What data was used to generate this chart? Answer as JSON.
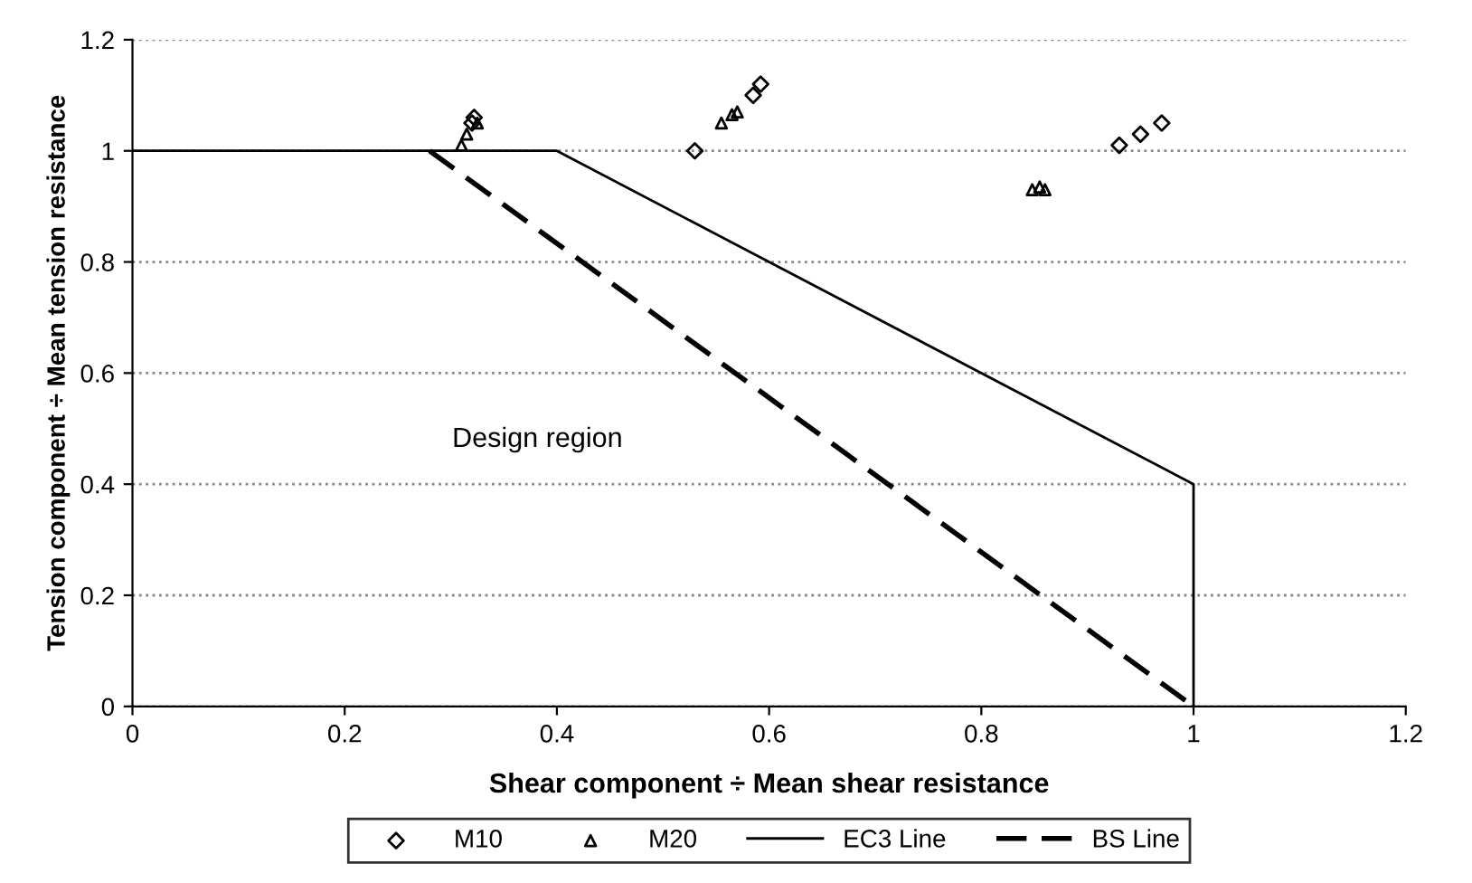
{
  "chart_data": {
    "type": "scatter",
    "xlabel": "Shear component ÷ Mean shear resistance",
    "ylabel": "Tension component ÷ Mean tension resistance",
    "xlim": [
      0,
      1.2
    ],
    "ylim": [
      0,
      1.2
    ],
    "xticks": [
      0,
      0.2,
      0.4,
      0.6,
      0.8,
      1,
      1.2
    ],
    "yticks": [
      0,
      0.2,
      0.4,
      0.6,
      0.8,
      1,
      1.2
    ],
    "grid": "y",
    "legend": "bottom",
    "annotations": [
      "Design region"
    ],
    "series": [
      {
        "name": "M10",
        "marker": "diamond",
        "color": "#000000",
        "x": [
          0.32,
          0.322,
          0.53,
          0.585,
          0.592,
          0.93,
          0.95,
          0.97
        ],
        "values": [
          1.05,
          1.06,
          1.0,
          1.1,
          1.12,
          1.01,
          1.03,
          1.05
        ]
      },
      {
        "name": "M20",
        "marker": "triangle",
        "color": "#000000",
        "x": [
          0.31,
          0.315,
          0.325,
          0.555,
          0.565,
          0.57,
          0.848,
          0.855,
          0.86
        ],
        "values": [
          1.01,
          1.03,
          1.05,
          1.05,
          1.065,
          1.07,
          0.93,
          0.935,
          0.93
        ]
      },
      {
        "name": "EC3 Line",
        "type": "line",
        "marker": "none",
        "line_style": "solid",
        "color": "#000000",
        "x": [
          0,
          0.4,
          1,
          1
        ],
        "values": [
          1,
          1,
          0.4,
          0
        ]
      },
      {
        "name": "BS Line",
        "type": "line",
        "marker": "none",
        "line_style": "dashed",
        "color": "#000000",
        "x": [
          0.28,
          1
        ],
        "values": [
          1,
          0
        ]
      }
    ]
  }
}
